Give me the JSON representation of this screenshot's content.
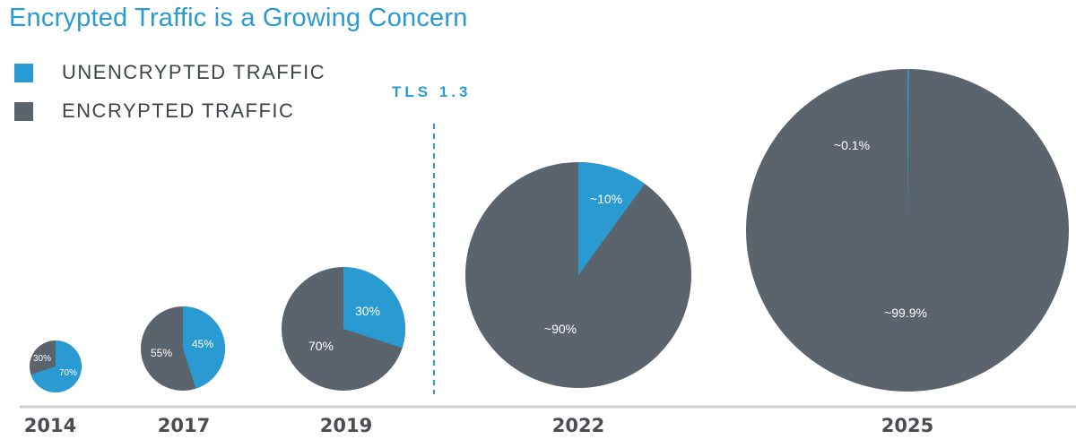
{
  "chart_data": {
    "type": "pie",
    "title": "Encrypted Traffic is a Growing Concern",
    "legend": {
      "position": "top-left",
      "entries": [
        {
          "name": "UNENCRYPTED TRAFFIC",
          "color": "#2a9bd2"
        },
        {
          "name": "ENCRYPTED TRAFFIC",
          "color": "#5b636d"
        }
      ]
    },
    "annotation": {
      "label": "TLS 1.3",
      "between": [
        "2019",
        "2022"
      ],
      "style": "dashed vertical line"
    },
    "pies": [
      {
        "year": "2014",
        "blue_value": 70,
        "gray_value": 30,
        "blue_label": "70%",
        "gray_label": "30%"
      },
      {
        "year": "2017",
        "blue_value": 45,
        "gray_value": 55,
        "blue_label": "45%",
        "gray_label": "55%"
      },
      {
        "year": "2019",
        "blue_value": 30,
        "gray_value": 70,
        "blue_label": "30%",
        "gray_label": "70%"
      },
      {
        "year": "2022",
        "blue_value": 10,
        "gray_value": 90,
        "blue_label": "~10%",
        "gray_label": "~90%"
      },
      {
        "year": "2025",
        "blue_value": 0.1,
        "gray_value": 99.9,
        "blue_label": "~0.1%",
        "gray_label": "~99.9%"
      }
    ],
    "baseline_color": "#cccccc"
  }
}
